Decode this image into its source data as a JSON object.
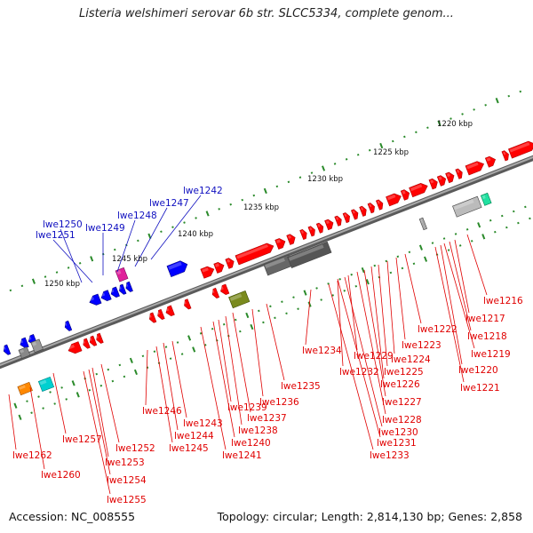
{
  "title": "Listeria welshimeri serovar 6b str. SLCC5334, complete genom...",
  "accession": "Accession: NC_008555",
  "summary": "Topology: circular; Length: 2,814,130 bp; Genes: 2,858",
  "colors": {
    "backbone": "#777777",
    "gene_forward": "#ff0000",
    "gene_reverse": "#0000ff",
    "label_reverse": "#1010c0",
    "label_forward": "#e00000",
    "dots": "#2a8a2a"
  },
  "kbp_ticks": [
    {
      "text": "1220 kbp"
    },
    {
      "text": "1225 kbp"
    },
    {
      "text": "1230 kbp"
    },
    {
      "text": "1235 kbp"
    },
    {
      "text": "1240 kbp"
    },
    {
      "text": "1245 kbp"
    },
    {
      "text": "1250 kbp"
    }
  ],
  "blue_labels": [
    {
      "text": "lwe1242"
    },
    {
      "text": "lwe1247"
    },
    {
      "text": "lwe1248"
    },
    {
      "text": "lwe1249"
    },
    {
      "text": "lwe1250"
    },
    {
      "text": "lwe1251"
    }
  ],
  "red_labels": [
    {
      "text": "lwe1216"
    },
    {
      "text": "lwe1217"
    },
    {
      "text": "lwe1218"
    },
    {
      "text": "lwe1219"
    },
    {
      "text": "lwe1220"
    },
    {
      "text": "lwe1221"
    },
    {
      "text": "lwe1222"
    },
    {
      "text": "lwe1223"
    },
    {
      "text": "lwe1224"
    },
    {
      "text": "lwe1225"
    },
    {
      "text": "lwe1226"
    },
    {
      "text": "lwe1227"
    },
    {
      "text": "lwe1228"
    },
    {
      "text": "lwe1229"
    },
    {
      "text": "lwe1230"
    },
    {
      "text": "lwe1231"
    },
    {
      "text": "lwe1232"
    },
    {
      "text": "lwe1233"
    },
    {
      "text": "lwe1234"
    },
    {
      "text": "lwe1235"
    },
    {
      "text": "lwe1236"
    },
    {
      "text": "lwe1237"
    },
    {
      "text": "lwe1238"
    },
    {
      "text": "lwe1239"
    },
    {
      "text": "lwe1240"
    },
    {
      "text": "lwe1241"
    },
    {
      "text": "lwe1243"
    },
    {
      "text": "lwe1244"
    },
    {
      "text": "lwe1245"
    },
    {
      "text": "lwe1246"
    },
    {
      "text": "lwe1252"
    },
    {
      "text": "lwe1253"
    },
    {
      "text": "lwe1254"
    },
    {
      "text": "lwe1255"
    },
    {
      "text": "lwe1257"
    },
    {
      "text": "lwe1260"
    },
    {
      "text": "lwe1262"
    }
  ]
}
